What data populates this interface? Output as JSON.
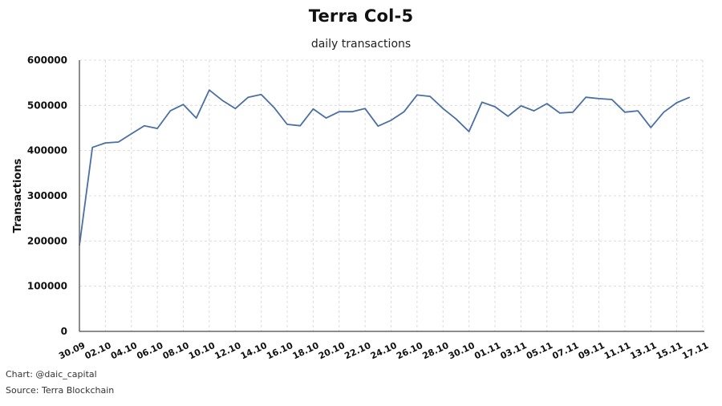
{
  "chart_data": {
    "type": "line",
    "title": "Terra Col-5",
    "subtitle": "daily transactions",
    "xlabel": "",
    "ylabel": "Transactions",
    "ylim": [
      0,
      600000
    ],
    "yticks": [
      0,
      100000,
      200000,
      300000,
      400000,
      500000,
      600000
    ],
    "xtick_labels": [
      "30.09",
      "02.10",
      "04.10",
      "06.10",
      "08.10",
      "10.10",
      "12.10",
      "14.10",
      "16.10",
      "18.10",
      "20.10",
      "22.10",
      "24.10",
      "26.10",
      "28.10",
      "30.10",
      "01.11",
      "03.11",
      "05.11",
      "07.11",
      "09.11",
      "11.11",
      "13.11",
      "15.11",
      "17.11"
    ],
    "grid": true,
    "legend": null,
    "line_color": "#4a6fa5",
    "x": [
      "30.09",
      "01.10",
      "02.10",
      "03.10",
      "04.10",
      "05.10",
      "06.10",
      "07.10",
      "08.10",
      "09.10",
      "10.10",
      "11.10",
      "12.10",
      "13.10",
      "14.10",
      "15.10",
      "16.10",
      "17.10",
      "18.10",
      "19.10",
      "20.10",
      "21.10",
      "22.10",
      "23.10",
      "24.10",
      "25.10",
      "26.10",
      "27.10",
      "28.10",
      "29.10",
      "30.10",
      "31.10",
      "01.11",
      "02.11",
      "03.11",
      "04.11",
      "05.11",
      "06.11",
      "07.11",
      "08.11",
      "09.11",
      "10.11",
      "11.11",
      "12.11",
      "13.11",
      "14.11",
      "15.11",
      "16.11"
    ],
    "series": [
      {
        "name": "daily transactions",
        "values": [
          190000,
          407000,
          417000,
          419000,
          437000,
          455000,
          449000,
          488000,
          502000,
          472000,
          534000,
          511000,
          493000,
          518000,
          524000,
          495000,
          458000,
          455000,
          492000,
          472000,
          486000,
          486000,
          493000,
          454000,
          467000,
          486000,
          523000,
          520000,
          493000,
          470000,
          442000,
          507000,
          497000,
          476000,
          499000,
          488000,
          504000,
          483000,
          485000,
          518000,
          515000,
          513000,
          485000,
          488000,
          451000,
          485000,
          506000,
          518000
        ]
      }
    ]
  },
  "footer": {
    "chart_credit": "Chart: @daic_capital",
    "source": "Source: Terra Blockchain"
  }
}
